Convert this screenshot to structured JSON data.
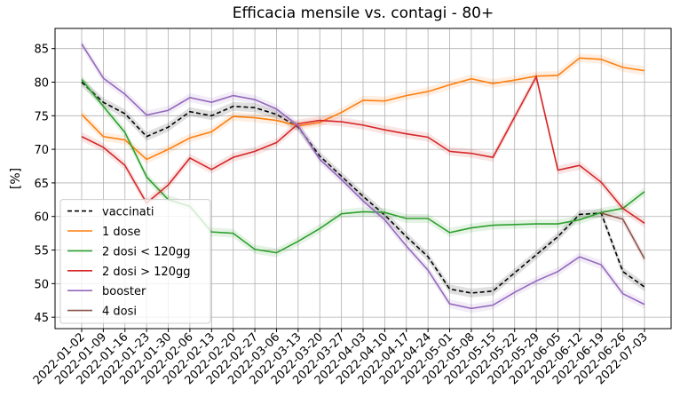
{
  "chart_data": {
    "type": "line",
    "title": "Efficacia mensile vs. contagi - 80+",
    "y_label": "[%]",
    "categories": [
      "2022-01-02",
      "2022-01-09",
      "2022-01-16",
      "2022-01-23",
      "2022-01-30",
      "2022-02-06",
      "2022-02-13",
      "2022-02-20",
      "2022-02-27",
      "2022-03-06",
      "2022-03-13",
      "2022-03-20",
      "2022-03-27",
      "2022-04-03",
      "2022-04-10",
      "2022-04-17",
      "2022-04-24",
      "2022-05-01",
      "2022-05-08",
      "2022-05-15",
      "2022-05-22",
      "2022-05-29",
      "2022-06-05",
      "2022-06-12",
      "2022-06-19",
      "2022-06-26",
      "2022-07-03"
    ],
    "series": [
      {
        "name": "vaccinati",
        "color": "#000000",
        "dashed": true,
        "values": [
          80,
          77,
          75.3,
          71.9,
          73.3,
          75.6,
          75,
          76.4,
          76.2,
          75.2,
          73.3,
          69,
          66,
          63,
          60.2,
          57,
          54,
          49.2,
          48.6,
          48.9,
          51.6,
          54.3,
          57,
          60.3,
          60.5,
          51.8,
          49.5
        ]
      },
      {
        "name": "1 dose",
        "color": "#ff7f0e",
        "values": [
          75.2,
          71.9,
          71.4,
          68.5,
          70,
          71.7,
          72.6,
          74.9,
          74.7,
          74.3,
          73.5,
          74,
          75.5,
          77.3,
          77.2,
          78,
          78.6,
          79.6,
          80.5,
          79.8,
          80.3,
          80.9,
          81,
          83.6,
          83.4,
          82.2,
          81.7
        ]
      },
      {
        "name": "2 dosi < 120gg",
        "color": "#2ca02c",
        "values": [
          80.4,
          76.4,
          72.5,
          65.9,
          62.5,
          61.5,
          57.7,
          57.5,
          55.1,
          54.6,
          56.3,
          58.2,
          60.4,
          60.7,
          60.6,
          59.7,
          59.7,
          57.6,
          58.3,
          58.7,
          58.8,
          58.9,
          58.9,
          59.5,
          60.6,
          61.2,
          63.7
        ]
      },
      {
        "name": "2 dosi > 120gg",
        "color": "#d62728",
        "values": [
          71.9,
          70.3,
          67.6,
          62,
          64.7,
          68.7,
          67,
          68.8,
          69.7,
          71,
          73.8,
          74.3,
          74.1,
          73.6,
          72.9,
          72.3,
          71.8,
          69.7,
          69.4,
          68.8,
          74.8,
          80.8,
          66.9,
          67.6,
          65.1,
          61.2,
          59
        ]
      },
      {
        "name": "booster",
        "color": "#9467bd",
        "values": [
          85.7,
          80.6,
          78.2,
          75.1,
          75.8,
          77.7,
          77,
          78,
          77.4,
          76,
          73.5,
          68.5,
          65.5,
          62.3,
          59.5,
          55.6,
          52,
          47,
          46.3,
          46.8,
          48.7,
          50.4,
          51.8,
          54,
          52.8,
          48.5,
          46.9
        ]
      },
      {
        "name": "4 dosi",
        "color": "#8c564b",
        "values": [
          null,
          null,
          null,
          null,
          null,
          null,
          null,
          null,
          null,
          null,
          null,
          null,
          null,
          null,
          null,
          null,
          null,
          null,
          null,
          null,
          null,
          null,
          null,
          null,
          60.5,
          59.6,
          53.7
        ]
      }
    ],
    "ylim": [
      43.3,
      88
    ],
    "yticks": [
      45,
      50,
      55,
      60,
      65,
      70,
      75,
      80,
      85
    ],
    "grid": true,
    "legend": "lower left"
  }
}
